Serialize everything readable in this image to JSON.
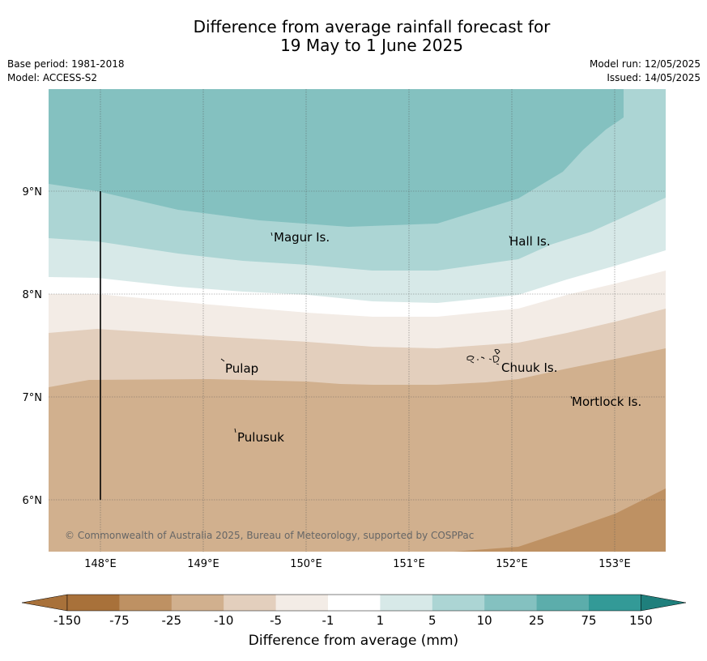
{
  "title_line1": "Difference from average rainfall forecast for",
  "title_line2": "19 May to 1 June 2025",
  "base_period": "Base period: 1981-2018",
  "model": "Model: ACCESS-S2",
  "model_run": "Model run: 12/05/2025",
  "issued": "Issued: 14/05/2025",
  "copyright": "© Commonwealth of Australia 2025, Bureau of Meteorology, supported by COSPPac",
  "map": {
    "lon_labels": [
      "148°E",
      "149°E",
      "150°E",
      "151°E",
      "152°E",
      "153°E"
    ],
    "lat_labels": [
      "9°N",
      "8°N",
      "7°N",
      "6°N"
    ],
    "places": [
      {
        "name": "Magur Is.",
        "id": "place-magur"
      },
      {
        "name": "Hall Is.",
        "id": "place-hall"
      },
      {
        "name": "Pulap",
        "id": "place-pulap"
      },
      {
        "name": "Chuuk Is.",
        "id": "place-chuuk"
      },
      {
        "name": "Mortlock Is.",
        "id": "place-mortlock"
      },
      {
        "name": "Pulusuk",
        "id": "place-pulusuk"
      }
    ]
  },
  "legend": {
    "title": "Difference from average (mm)",
    "tick_labels": [
      "-150",
      "-75",
      "-25",
      "-10",
      "-5",
      "-1",
      "1",
      "5",
      "10",
      "25",
      "75",
      "150"
    ],
    "colors": [
      "#a8713a",
      "#be9163",
      "#d1b08e",
      "#e3cfbd",
      "#f3ece6",
      "#ffffff",
      "#d7e9e8",
      "#acd5d4",
      "#84c1c0",
      "#5cadab",
      "#339a97",
      "#1f7f7c"
    ]
  }
}
